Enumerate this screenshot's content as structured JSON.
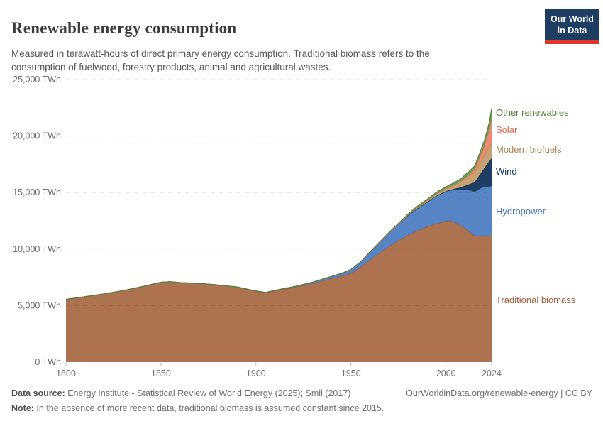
{
  "header": {
    "title": "Renewable energy consumption",
    "subtitle": "Measured in terawatt-hours of direct primary energy consumption. Traditional biomass refers to the consumption of fuelwood, forestry products, animal and agricultural wastes.",
    "logo": {
      "line1": "Our World",
      "line2": "in Data",
      "bg_color": "#1d3d63",
      "bar_color": "#e0362c"
    }
  },
  "chart_data": {
    "type": "area",
    "stacked": true,
    "unit": "TWh",
    "grid": "dashed-horizontal",
    "legend_position": "right-of-plot",
    "xlim": [
      1800,
      2024
    ],
    "ylim": [
      0,
      25000
    ],
    "x": [
      1800,
      1810,
      1820,
      1830,
      1840,
      1850,
      1855,
      1860,
      1870,
      1880,
      1890,
      1900,
      1905,
      1910,
      1920,
      1930,
      1940,
      1945,
      1950,
      1955,
      1960,
      1965,
      1970,
      1975,
      1980,
      1985,
      1990,
      1995,
      2000,
      2002,
      2005,
      2008,
      2010,
      2012,
      2015,
      2018,
      2020,
      2022,
      2023,
      2024
    ],
    "series": [
      {
        "name": "Traditional biomass",
        "fill": "#ad7350",
        "edge": "#96593a",
        "label_color": "#a25c3b",
        "values": [
          5550,
          5790,
          6030,
          6320,
          6680,
          7060,
          7110,
          7030,
          6960,
          6830,
          6640,
          6270,
          6130,
          6310,
          6610,
          6960,
          7410,
          7600,
          7860,
          8400,
          9050,
          9660,
          10260,
          10760,
          11230,
          11620,
          11980,
          12250,
          12480,
          12520,
          12350,
          12050,
          11840,
          11560,
          11190,
          11190,
          11190,
          11190,
          11190,
          11190
        ]
      },
      {
        "name": "Hydropower",
        "fill": "#5784c4",
        "edge": "#4170b2",
        "label_color": "#4575c3",
        "values": [
          0,
          0,
          0,
          0,
          0,
          0,
          0,
          0,
          0,
          0,
          3,
          17,
          25,
          35,
          65,
          120,
          185,
          245,
          334,
          450,
          690,
          925,
          1180,
          1465,
          1740,
          1980,
          2160,
          2465,
          2610,
          2655,
          2905,
          3180,
          3430,
          3645,
          3880,
          4170,
          4340,
          4330,
          4320,
          4410
        ]
      },
      {
        "name": "Wind",
        "fill": "#1e3e63",
        "edge": "#152e4c",
        "label_color": "#163a63",
        "values": [
          0,
          0,
          0,
          0,
          0,
          0,
          0,
          0,
          0,
          0,
          0,
          0,
          0,
          0,
          0,
          0,
          0,
          0,
          0,
          0,
          0,
          0,
          0,
          0,
          0,
          0,
          4,
          8,
          31,
          52,
          104,
          220,
          342,
          525,
          830,
          1270,
          1590,
          2100,
          2300,
          2450
        ]
      },
      {
        "name": "Modern biofuels",
        "fill": "#c5a173",
        "edge": "#ae8651",
        "label_color": "#ab8553",
        "values": [
          0,
          0,
          0,
          0,
          0,
          0,
          0,
          0,
          0,
          0,
          0,
          0,
          0,
          0,
          0,
          0,
          0,
          0,
          0,
          0,
          0,
          0,
          0,
          5,
          45,
          100,
          135,
          175,
          245,
          280,
          395,
          570,
          695,
          760,
          880,
          1020,
          1130,
          1210,
          1260,
          1310
        ]
      },
      {
        "name": "Solar",
        "fill": "#ee8a74",
        "edge": "#de6a50",
        "label_color": "#dd6a51",
        "values": [
          0,
          0,
          0,
          0,
          0,
          0,
          0,
          0,
          0,
          0,
          0,
          0,
          0,
          0,
          0,
          0,
          0,
          0,
          0,
          0,
          0,
          0,
          0,
          0,
          0,
          0,
          0,
          0,
          1,
          2,
          4,
          12,
          33,
          97,
          253,
          570,
          845,
          1320,
          1630,
          2130
        ]
      },
      {
        "name": "Other renewables",
        "fill": "#699f57",
        "edge": "#50813d",
        "label_color": "#57823f",
        "values": [
          0,
          0,
          0,
          0,
          0,
          0,
          0,
          0,
          0,
          0,
          0,
          0,
          0,
          0,
          0,
          0,
          0,
          0,
          10,
          15,
          25,
          35,
          45,
          55,
          75,
          95,
          115,
          135,
          155,
          165,
          185,
          205,
          230,
          260,
          300,
          365,
          420,
          530,
          700,
          950
        ]
      }
    ],
    "y_ticks": [
      {
        "value": 0,
        "label": "0 TWh"
      },
      {
        "value": 5000,
        "label": "5,000 TWh"
      },
      {
        "value": 10000,
        "label": "10,000 TWh"
      },
      {
        "value": 15000,
        "label": "15,000 TWh"
      },
      {
        "value": 20000,
        "label": "20,000 TWh"
      },
      {
        "value": 25000,
        "label": "25,000 TWh"
      }
    ],
    "x_ticks": [
      {
        "value": 1800,
        "label": "1800"
      },
      {
        "value": 1850,
        "label": "1850"
      },
      {
        "value": 1900,
        "label": "1900"
      },
      {
        "value": 1950,
        "label": "1950"
      },
      {
        "value": 2000,
        "label": "2000"
      },
      {
        "value": 2024,
        "label": "2024"
      }
    ]
  },
  "footer": {
    "source_label": "Data source:",
    "source_text": " Energy Institute - Statistical Review of World Energy (2025); Smil (2017)",
    "link": "OurWorldinData.org/renewable-energy | CC BY",
    "note_label": "Note:",
    "note_text": " In the absence of more recent data, traditional biomass is assumed constant since 2015."
  }
}
